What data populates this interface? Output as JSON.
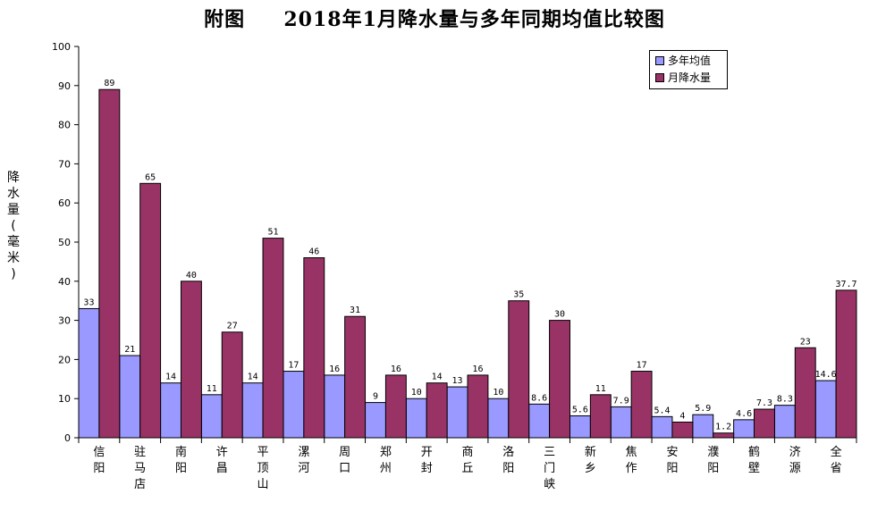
{
  "title": "附图     2018年1月降水量与多年同期均值比较图",
  "ylabel": "降水量(毫米)",
  "legend": {
    "avg": "多年均值",
    "month": "月降水量"
  },
  "colors": {
    "avg": "#9999ff",
    "month": "#993366"
  },
  "chart_data": {
    "type": "bar",
    "title": "附图     2018年1月降水量与多年同期均值比较图",
    "ylabel": "降水量(毫米)",
    "xlabel": "",
    "ylim": [
      0,
      100
    ],
    "yticks": [
      0,
      10,
      20,
      30,
      40,
      50,
      60,
      70,
      80,
      90,
      100
    ],
    "legend_position": "top-right",
    "categories": [
      "信阳",
      "驻马店",
      "南阳",
      "许昌",
      "平顶山",
      "漯河",
      "周口",
      "郑州",
      "开封",
      "商丘",
      "洛阳",
      "三门峡",
      "新乡",
      "焦作",
      "安阳",
      "濮阳",
      "鹤壁",
      "济源",
      "全省"
    ],
    "series": [
      {
        "name": "多年均值",
        "values": [
          33,
          21,
          14,
          11,
          14,
          17,
          16,
          9,
          10,
          13,
          10,
          8.6,
          5.6,
          7.9,
          5.4,
          5.9,
          4.6,
          8.3,
          14.6
        ],
        "labels": [
          "33",
          "21",
          "14",
          "11",
          "14",
          "17",
          "16",
          "9",
          "10",
          "13",
          "10",
          "8.6",
          "5.6",
          "7.9",
          "5.4",
          "5.9",
          "4.6",
          "8.3",
          "14.6"
        ]
      },
      {
        "name": "月降水量",
        "values": [
          89,
          65,
          40,
          27,
          51,
          46,
          31,
          16,
          14,
          16,
          35,
          30,
          11,
          17,
          4,
          1.2,
          7.3,
          23,
          37.7
        ],
        "labels": [
          "89",
          "65",
          "40",
          "27",
          "51",
          "46",
          "31",
          "16",
          "14",
          "16",
          "35",
          "30",
          "11",
          "17",
          "4",
          "1.2",
          "7.3",
          "23",
          "37.7"
        ]
      }
    ]
  }
}
